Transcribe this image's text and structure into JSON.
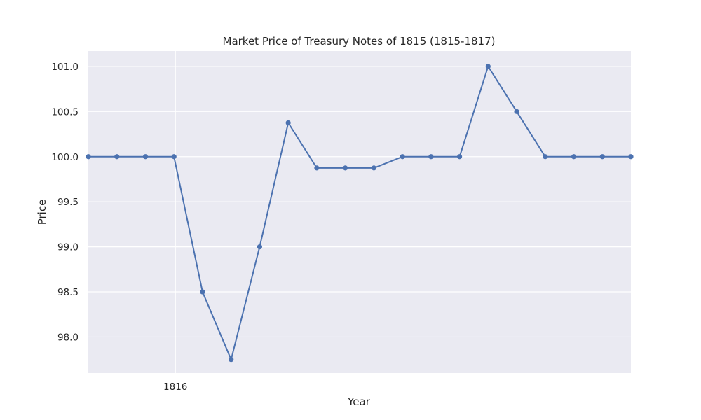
{
  "chart_data": {
    "type": "line",
    "title": "Market Price of Treasury Notes of 1815 (1815-1817)",
    "xlabel": "Year",
    "ylabel": "Price",
    "x_tick_labels": [
      {
        "label": "1816",
        "index": 3
      }
    ],
    "y_ticks": [
      "98.0",
      "98.5",
      "99.0",
      "99.5",
      "100.0",
      "100.5",
      "101.0"
    ],
    "ylim": [
      97.6,
      101.17
    ],
    "grid": true,
    "legend": "none",
    "colors": {
      "line": "#4c72b0",
      "background": "#eaeaf2",
      "grid": "#ffffff"
    },
    "series": [
      {
        "values": [
          100.0,
          100.0,
          100.0,
          100.0,
          98.5,
          97.75,
          99.0,
          100.375,
          99.875,
          99.875,
          99.875,
          100.0,
          100.0,
          100.0,
          101.0,
          100.5,
          100.0,
          100.0,
          100.0,
          100.0
        ]
      }
    ]
  }
}
